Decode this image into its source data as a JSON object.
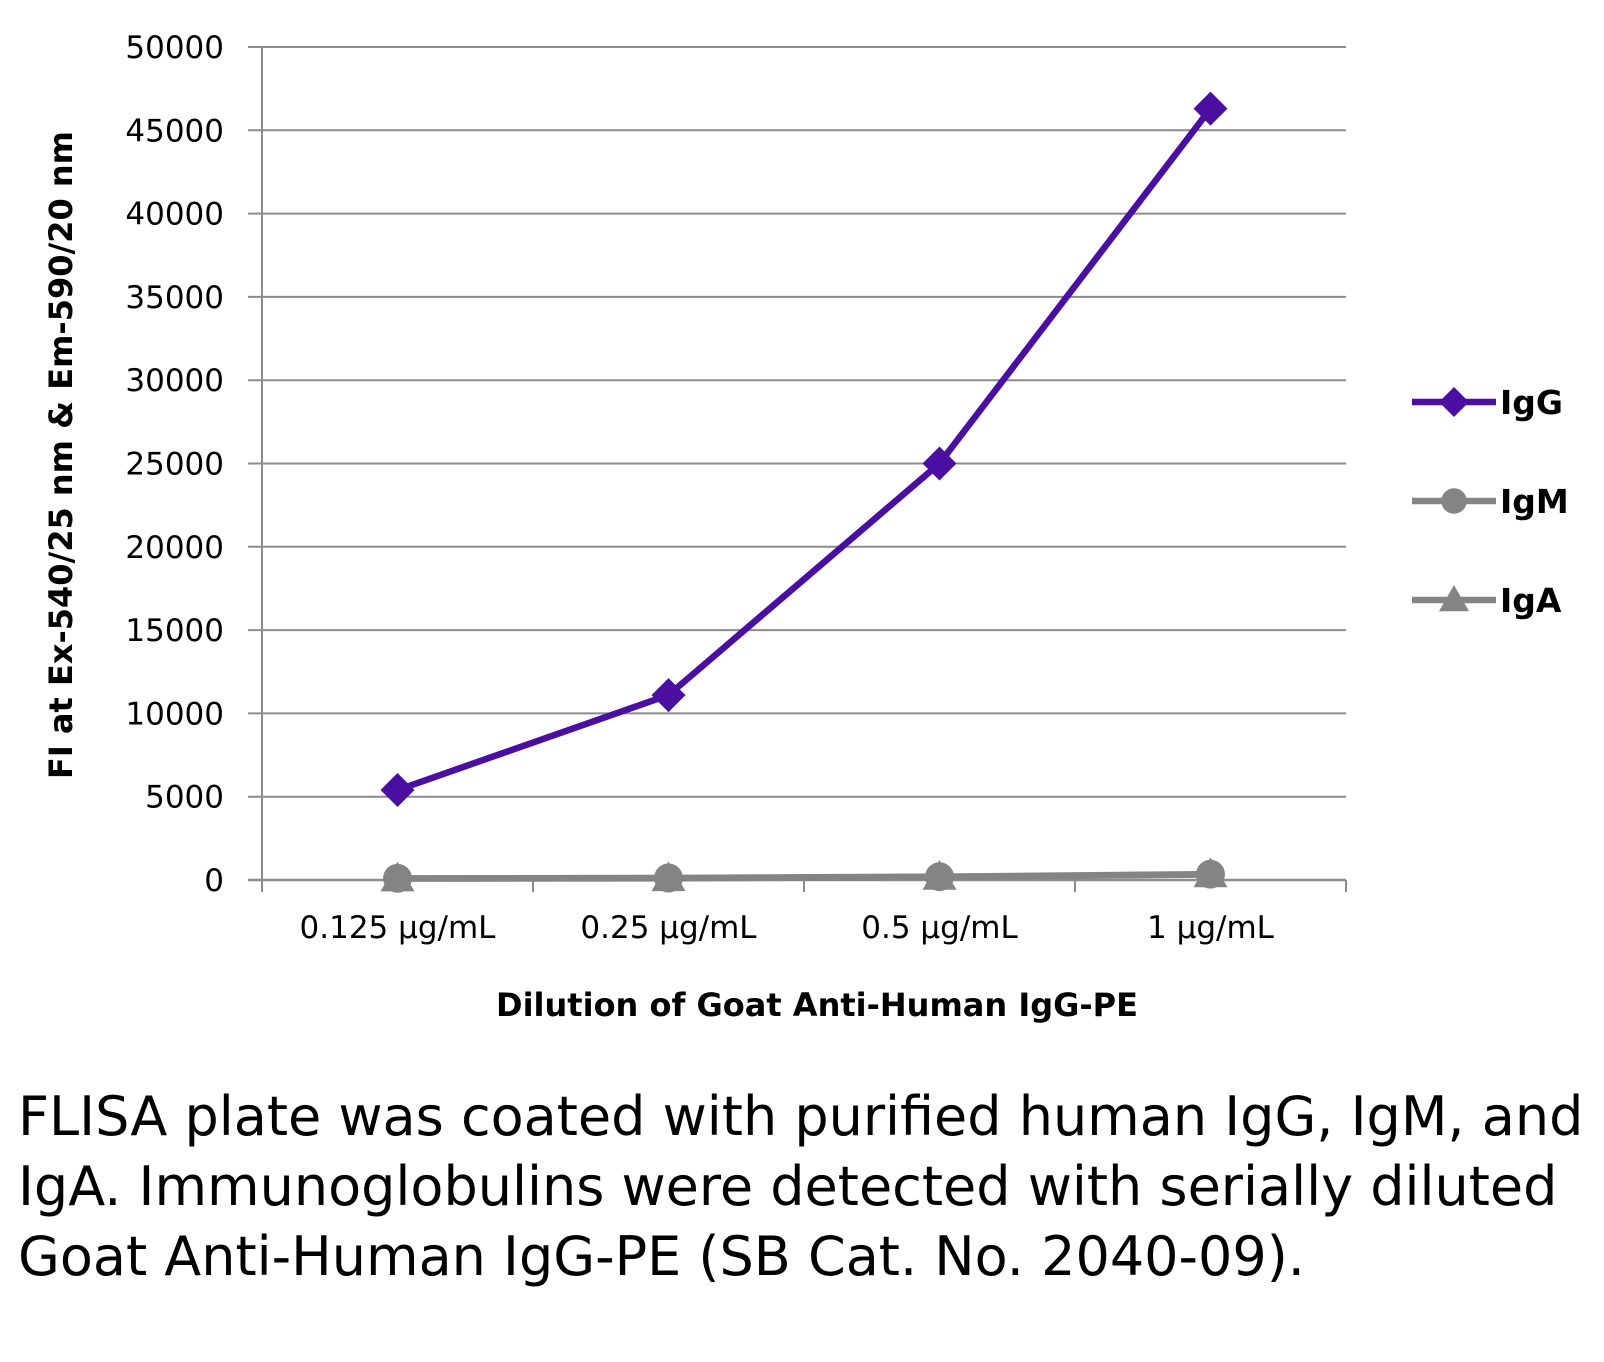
{
  "chart_data": {
    "type": "line",
    "categories": [
      "0.125 µg/mL",
      "0.25 µg/mL",
      "0.5 µg/mL",
      "1 µg/mL"
    ],
    "series": [
      {
        "name": "IgG",
        "values": [
          5400,
          11100,
          25000,
          46300
        ],
        "color": "#4a0fa0",
        "marker": "diamond"
      },
      {
        "name": "IgM",
        "values": [
          100,
          120,
          200,
          350
        ],
        "color": "#848484",
        "marker": "circle"
      },
      {
        "name": "IgA",
        "values": [
          80,
          100,
          180,
          330
        ],
        "color": "#848484",
        "marker": "triangle"
      }
    ],
    "xlabel": "Dilution of Goat Anti-Human IgG-PE",
    "ylabel": "FI at Ex-540/25 nm & Em-590/20 nm",
    "ylim": [
      0,
      50000
    ],
    "yticks": [
      "0",
      "5000",
      "10000",
      "15000",
      "20000",
      "25000",
      "30000",
      "35000",
      "40000",
      "45000",
      "50000"
    ],
    "grid": true,
    "legend": "right"
  },
  "caption": "FLISA plate was coated with purified human IgG, IgM, and IgA.  Immunoglobulins were detected with serially diluted Goat Anti-Human IgG-PE (SB Cat. No. 2040-09)."
}
